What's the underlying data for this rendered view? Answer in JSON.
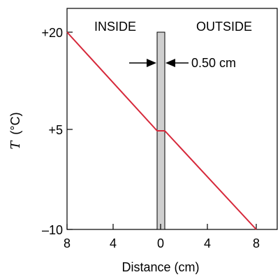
{
  "labels": {
    "inside": "INSIDE",
    "outside": "OUTSIDE",
    "thickness": "0.50 cm",
    "y_axis_symbol": "T",
    "y_axis_unit": "(°C)",
    "x_axis": "Distance (cm)"
  },
  "y_axis": {
    "range": [
      -10,
      20
    ],
    "ticks": [
      {
        "value": 20,
        "label": "+20"
      },
      {
        "value": 5,
        "label": "+5"
      },
      {
        "value": -10,
        "label": "–10"
      }
    ]
  },
  "x_axis": {
    "ticks": [
      {
        "label": "8"
      },
      {
        "label": "4"
      },
      {
        "label": "0"
      },
      {
        "label": "4"
      },
      {
        "label": "8"
      }
    ]
  },
  "temperature_profile": {
    "inside_edge_temp": 20,
    "wall_temp": 5,
    "outside_edge_temp": -10
  },
  "colors": {
    "line": "#d6283a",
    "wall_fill": "#cfcfcf",
    "stroke": "#000000"
  }
}
